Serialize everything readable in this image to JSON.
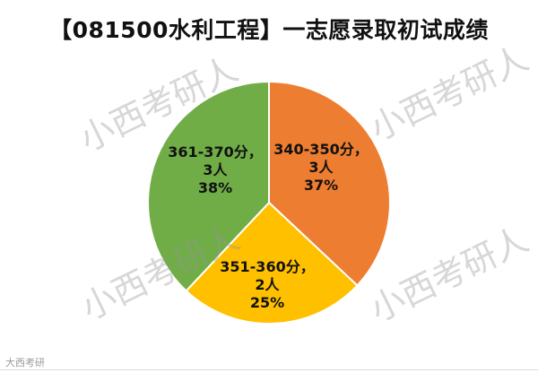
{
  "title": "【081500水利工程】一志愿录取初试成绩",
  "watermark_text": "小西考研人",
  "footer_mark": "大西考研",
  "chart_data": {
    "type": "pie",
    "title": "【081500水利工程】一志愿录取初试成绩",
    "slices": [
      {
        "label_range": "340-350分，",
        "label_count": "3人",
        "label_pct": "37%",
        "value": 37,
        "color": "#ED7D31"
      },
      {
        "label_range": "351-360分，",
        "label_count": "2人",
        "label_pct": "25%",
        "value": 25,
        "color": "#FFC000"
      },
      {
        "label_range": "361-370分，",
        "label_count": "3人",
        "label_pct": "38%",
        "value": 38,
        "color": "#70AD47"
      }
    ]
  }
}
